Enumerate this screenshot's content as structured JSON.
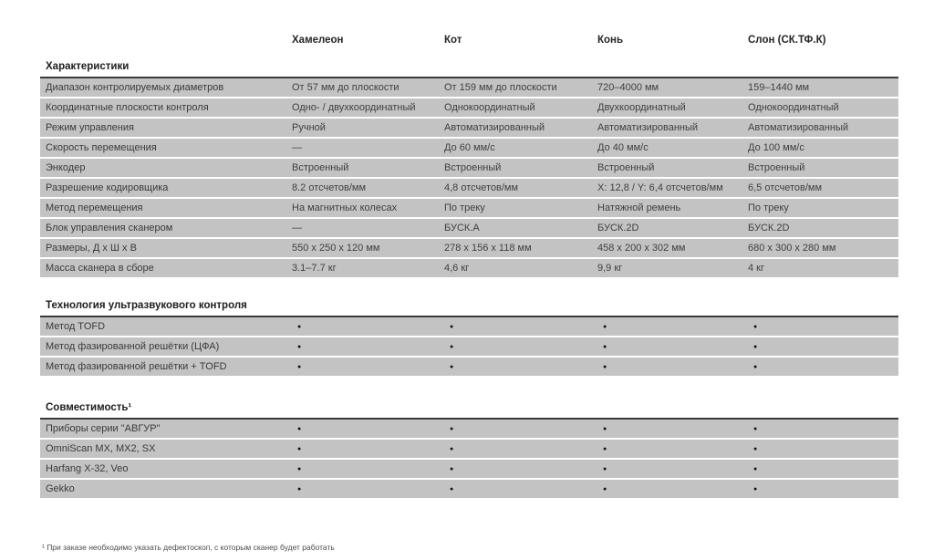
{
  "colors": {
    "row_background": "#c3c3c3",
    "section_border": "#3a3a3a",
    "page_background": "#ffffff"
  },
  "columns": [
    "Хамелеон",
    "Кот",
    "Конь",
    "Слон (СК.ТФ.К)"
  ],
  "sections": [
    {
      "title": "Характеристики",
      "rows": [
        {
          "label": "Диапазон контролируемых диаметров",
          "values": [
            "От 57 мм до плоскости",
            "От 159 мм до плоскости",
            "720–4000 мм",
            "159–1440 мм"
          ]
        },
        {
          "label": "Координатные плоскости контроля",
          "values": [
            "Одно- / двухкоординатный",
            "Однокоординатный",
            "Двухкоординатный",
            "Однокоординатный"
          ]
        },
        {
          "label": "Режим управления",
          "values": [
            "Ручной",
            "Автоматизированный",
            "Автоматизированный",
            "Автоматизированный"
          ]
        },
        {
          "label": "Скорость перемещения",
          "values": [
            "—",
            "До 60 мм/с",
            "До 40 мм/с",
            "До 100 мм/с"
          ]
        },
        {
          "label": "Энкодер",
          "values": [
            "Встроенный",
            "Встроенный",
            "Встроенный",
            "Встроенный"
          ]
        },
        {
          "label": "Разрешение кодировщика",
          "values": [
            "8.2 отсчетов/мм",
            "4,8 отсчетов/мм",
            "X: 12,8 / Y: 6,4 отсчетов/мм",
            "6,5 отсчетов/мм"
          ]
        },
        {
          "label": "Метод перемещения",
          "values": [
            "На магнитных колесах",
            "По треку",
            "Натяжной ремень",
            "По треку"
          ]
        },
        {
          "label": "Блок управления сканером",
          "values": [
            "—",
            "БУСК.А",
            "БУСК.2D",
            "БУСК.2D"
          ]
        },
        {
          "label": "Размеры, Д х Ш х В",
          "values": [
            "550 x 250 x 120 мм",
            "278 x 156 x 118 мм",
            "458 x 200 x 302 мм",
            "680 x 300 x 280 мм"
          ]
        },
        {
          "label": "Масса сканера в сборе",
          "values": [
            "3.1–7.7 кг",
            "4,6 кг",
            "9,9 кг",
            "4 кг"
          ]
        }
      ]
    },
    {
      "title": "Технология ультразвукового контроля",
      "rows": [
        {
          "label": "Метод TOFD",
          "values": [
            "●",
            "●",
            "●",
            "●"
          ]
        },
        {
          "label": "Метод фазированной решётки (ЦФА)",
          "values": [
            "●",
            "●",
            "●",
            "●"
          ]
        },
        {
          "label": "Метод фазированной решётки + TOFD",
          "values": [
            "●",
            "●",
            "●",
            "●"
          ]
        }
      ]
    },
    {
      "title": "Совместимость¹",
      "rows": [
        {
          "label": "Приборы серии \"АВГУР\"",
          "values": [
            "●",
            "●",
            "●",
            "●"
          ]
        },
        {
          "label": "OmniScan MX, MX2, SX",
          "values": [
            "●",
            "●",
            "●",
            "●"
          ]
        },
        {
          "label": "Harfang X-32, Veo",
          "values": [
            "●",
            "●",
            "●",
            "●"
          ]
        },
        {
          "label": "Gekko",
          "values": [
            "●",
            "●",
            "●",
            "●"
          ]
        }
      ]
    }
  ],
  "footnote": "¹ При заказе необходимо указать дефектоскоп, с которым сканер будет работать"
}
